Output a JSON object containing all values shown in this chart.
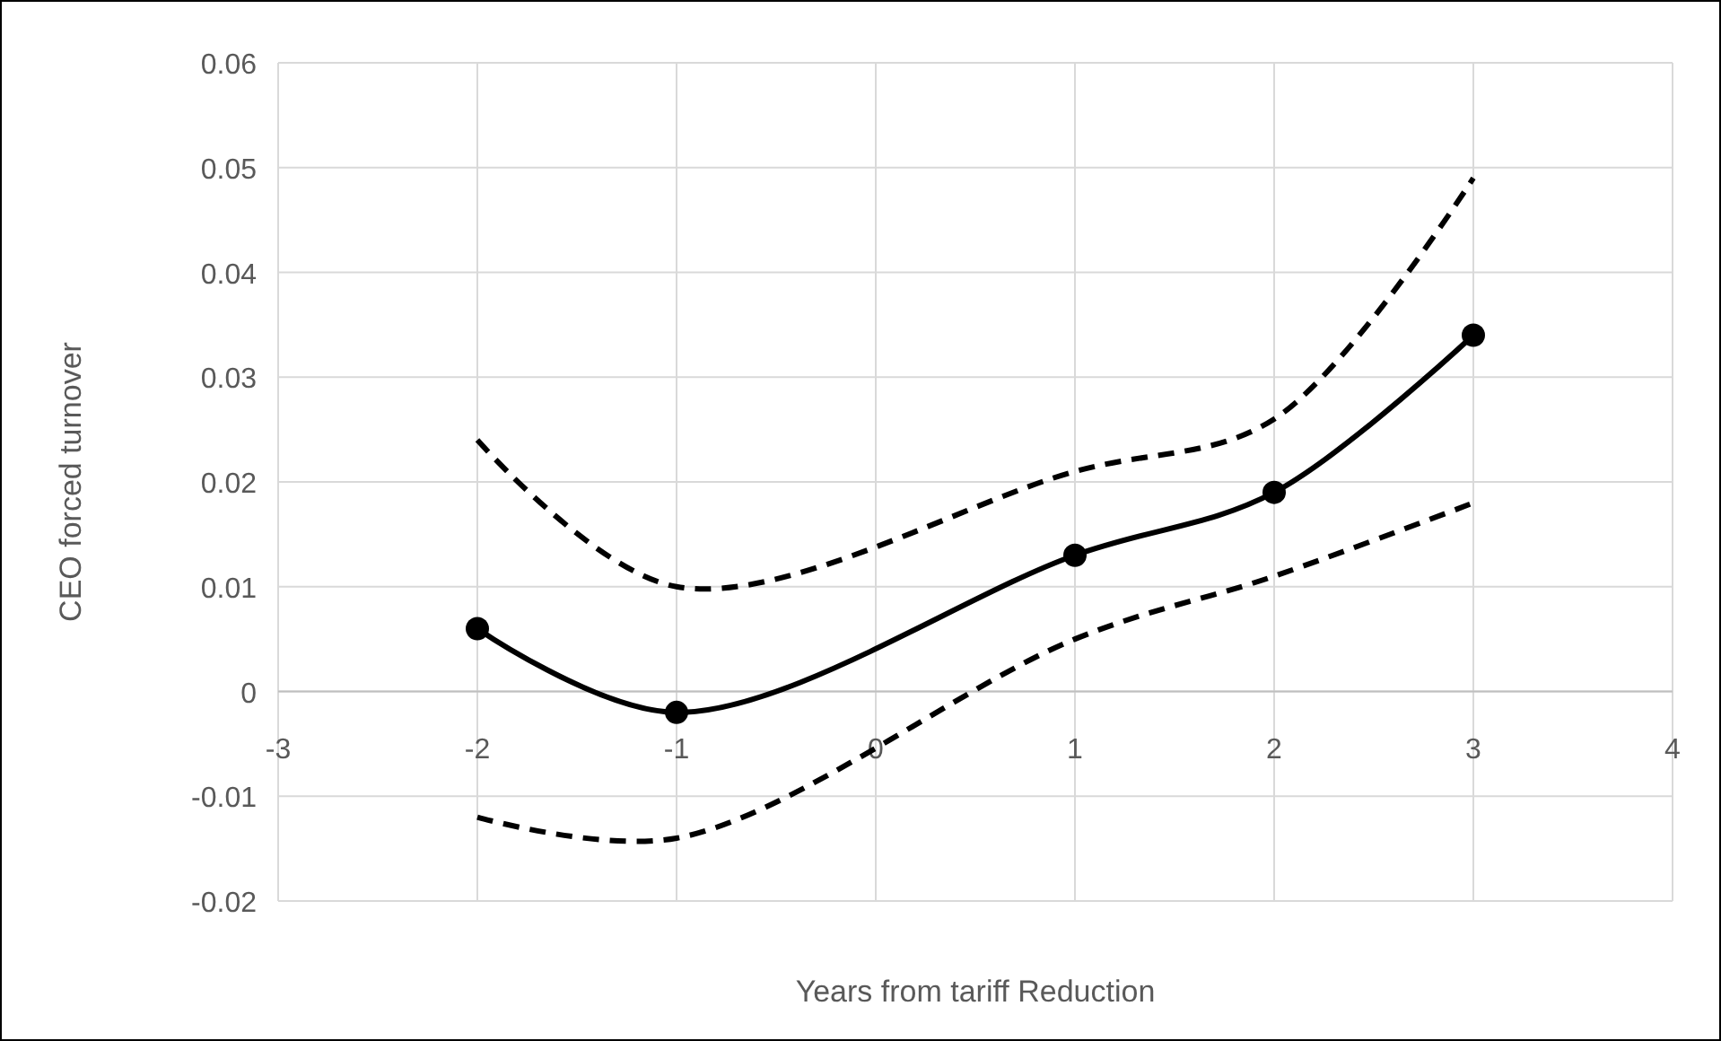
{
  "chart_data": {
    "type": "line",
    "xlabel": "Years from tariff Reduction",
    "ylabel": "CEO forced turnover",
    "xlim": [
      -3,
      4
    ],
    "xticks": [
      -3,
      -2,
      -1,
      0,
      1,
      2,
      3,
      4
    ],
    "ylim": [
      -0.02,
      0.06
    ],
    "yticks": [
      -0.02,
      -0.01,
      0,
      0.01,
      0.02,
      0.03,
      0.04,
      0.05,
      0.06
    ],
    "grid": true,
    "series": [
      {
        "color": "#000000",
        "x": [
          -2,
          -1,
          1,
          2,
          3
        ],
        "values": [
          0.006,
          -0.002,
          0.013,
          0.019,
          0.034
        ],
        "marker": "circle",
        "line_style": "solid"
      },
      {
        "color": "#000000",
        "x": [
          -2,
          -1,
          1,
          2,
          3
        ],
        "values": [
          0.024,
          0.01,
          0.021,
          0.026,
          0.049
        ],
        "marker": "none",
        "line_style": "dashed"
      },
      {
        "color": "#000000",
        "x": [
          -2,
          -1,
          1,
          2,
          3
        ],
        "values": [
          -0.012,
          -0.014,
          0.005,
          0.011,
          0.018
        ],
        "marker": "none",
        "line_style": "dashed"
      }
    ]
  }
}
